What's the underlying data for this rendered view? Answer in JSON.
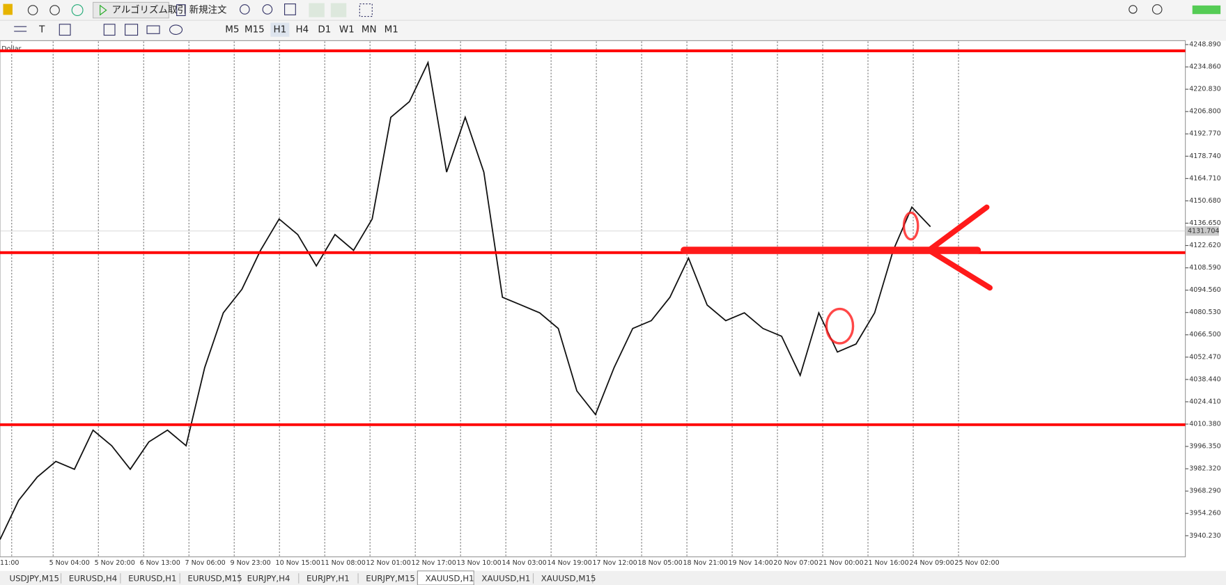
{
  "toolbar": {
    "algo": "アルゴリズム取引",
    "order": "新規注文",
    "timeframes": [
      "M5",
      "M15",
      "H1",
      "H4",
      "D1",
      "W1",
      "MN",
      "M1"
    ],
    "active_timeframe": "H1"
  },
  "chart": {
    "symbol": "Dollar",
    "ylim": [
      3926.96,
      4250.86
    ],
    "yticks": [
      {
        "value": 4248.89,
        "label": "4248.890"
      },
      {
        "value": 4234.86,
        "label": "4234.860"
      },
      {
        "value": 4220.83,
        "label": "4220.830"
      },
      {
        "value": 4206.8,
        "label": "4206.800"
      },
      {
        "value": 4192.77,
        "label": "4192.770"
      },
      {
        "value": 4178.74,
        "label": "4178.740"
      },
      {
        "value": 4164.71,
        "label": "4164.710"
      },
      {
        "value": 4150.68,
        "label": "4150.680"
      },
      {
        "value": 4136.65,
        "label": "4136.650"
      },
      {
        "value": 4122.62,
        "label": "4122.620"
      },
      {
        "value": 4108.59,
        "label": "4108.590"
      },
      {
        "value": 4094.56,
        "label": "4094.560"
      },
      {
        "value": 4080.53,
        "label": "4080.530"
      },
      {
        "value": 4066.5,
        "label": "4066.500"
      },
      {
        "value": 4052.47,
        "label": "4052.470"
      },
      {
        "value": 4038.44,
        "label": "4038.440"
      },
      {
        "value": 4024.41,
        "label": "4024.410"
      },
      {
        "value": 4010.38,
        "label": "4010.380"
      },
      {
        "value": 3996.35,
        "label": "3996.350"
      },
      {
        "value": 3982.32,
        "label": "3982.320"
      },
      {
        "value": 3968.29,
        "label": "3968.290"
      },
      {
        "value": 3954.26,
        "label": "3954.260"
      },
      {
        "value": 3940.23,
        "label": "3940.230"
      }
    ],
    "current_price": 4131.704,
    "time_labels": [
      "11:00",
      "5 Nov 04:00",
      "5 Nov 20:00",
      "6 Nov 13:00",
      "7 Nov 06:00",
      "9 Nov 23:00",
      "10 Nov 15:00",
      "11 Nov 08:00",
      "12 Nov 01:00",
      "12 Nov 17:00",
      "13 Nov 10:00",
      "14 Nov 03:00",
      "14 Nov 19:00",
      "17 Nov 12:00",
      "18 Nov 05:00",
      "18 Nov 21:00",
      "19 Nov 14:00",
      "20 Nov 07:00",
      "21 Nov 00:00",
      "21 Nov 16:00",
      "24 Nov 09:00",
      "25 Nov 02:00"
    ],
    "price_color": "#111111",
    "prices": [
      3937.8,
      3962.4,
      3977.1,
      3986.9,
      3982.0,
      4006.6,
      3996.8,
      3982.0,
      3999.2,
      4006.6,
      3996.8,
      4045.9,
      4080.3,
      4095.1,
      4119.6,
      4139.3,
      4129.5,
      4109.8,
      4129.5,
      4119.6,
      4139.3,
      4203.2,
      4213.0,
      4237.6,
      4168.8,
      4203.2,
      4168.8,
      4090.1,
      4085.2,
      4080.3,
      4070.5,
      4031.2,
      4016.4,
      4045.9,
      4070.5,
      4075.4,
      4090.1,
      4114.7,
      4085.2,
      4075.4,
      4080.3,
      4070.5,
      4065.6,
      4041.0,
      4080.3,
      4055.7,
      4060.7,
      4080.3,
      4119.6,
      4146.7,
      4134.4
    ],
    "level_color": "#ff0000",
    "levels": [
      4244.96,
      4118.15,
      4010.02
    ]
  },
  "tabs": [
    "USDJPY,M15",
    "EURUSD,H4",
    "EURUSD,H1",
    "EURUSD,M15",
    "EURJPY,H4",
    "EURJPY,H1",
    "EURJPY,M15",
    "XAUUSD,H1",
    "XAUUSD,H1",
    "XAUUSD,M15"
  ],
  "active_tab": 7
}
